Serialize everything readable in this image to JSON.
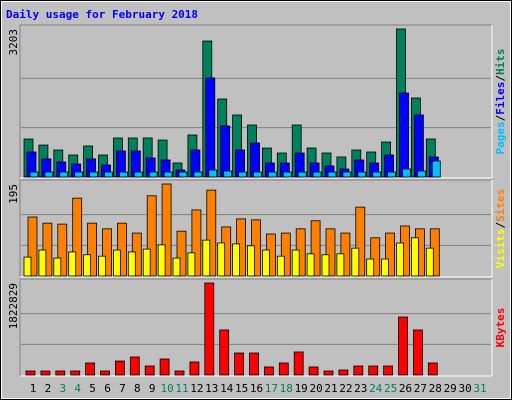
{
  "chart_data": {
    "type": "bar",
    "title": "Daily usage for February 2018",
    "categories": [
      "1",
      "2",
      "3",
      "4",
      "5",
      "6",
      "7",
      "8",
      "9",
      "10",
      "11",
      "12",
      "13",
      "14",
      "15",
      "16",
      "17",
      "18",
      "19",
      "20",
      "21",
      "22",
      "23",
      "24",
      "25",
      "26",
      "27",
      "28",
      "29",
      "30",
      "31"
    ],
    "category_colors": [
      "#000000",
      "#000000",
      "#00805C",
      "#00805C",
      "#000000",
      "#000000",
      "#000000",
      "#000000",
      "#000000",
      "#00805C",
      "#00805C",
      "#000000",
      "#000000",
      "#000000",
      "#000000",
      "#000000",
      "#00805C",
      "#00805C",
      "#000000",
      "#000000",
      "#000000",
      "#000000",
      "#000000",
      "#00805C",
      "#00805C",
      "#000000",
      "#000000",
      "#000000",
      "#000000",
      "#000000",
      "#00805C"
    ],
    "legend_separator": "/",
    "panels": [
      {
        "ylim": [
          0,
          3203
        ],
        "yticks": [
          3203
        ],
        "series": [
          {
            "name": "Hits",
            "color": "#00805C",
            "values": [
              822,
              692,
              584,
              476,
              671,
              476,
              844,
              844,
              844,
              800,
              303,
              909,
              2943,
              1688,
              1342,
              1125,
              627,
              519,
              1125,
              627,
              519,
              433,
              584,
              541,
              757,
              3203,
              1710,
              822,
              null,
              null,
              null
            ]
          },
          {
            "name": "Files",
            "color": "#0000FF",
            "values": [
              541,
              390,
              325,
              281,
              390,
              260,
              563,
              563,
              411,
              368,
              151,
              584,
              2143,
              1104,
              584,
              736,
              303,
              303,
              519,
              303,
              238,
              173,
              368,
              303,
              476,
              1818,
              1342,
              433,
              null,
              null,
              null
            ]
          },
          {
            "name": "Pages",
            "color": "#00C0FF",
            "values": [
              108,
              108,
              108,
              108,
              108,
              108,
              108,
              108,
              108,
              108,
              108,
              108,
              151,
              130,
              108,
              108,
              108,
              108,
              108,
              108,
              108,
              108,
              108,
              108,
              108,
              173,
              130,
              346,
              null,
              null,
              null
            ]
          }
        ]
      },
      {
        "ylim": [
          0,
          195
        ],
        "yticks": [
          195
        ],
        "series": [
          {
            "name": "Sites",
            "color": "#FF8000",
            "values": [
              125,
              112,
              110,
              165,
              112,
              100,
              112,
              91,
              170,
              195,
              95,
              140,
              182,
              104,
              121,
              119,
              89,
              91,
              100,
              117,
              100,
              91,
              146,
              81,
              91,
              106,
              100,
              100,
              null,
              null,
              null
            ]
          },
          {
            "name": "Visits",
            "color": "#FFFF00",
            "values": [
              40,
              55,
              38,
              51,
              45,
              42,
              55,
              51,
              57,
              66,
              38,
              49,
              76,
              70,
              68,
              64,
              55,
              42,
              55,
              47,
              45,
              47,
              59,
              36,
              36,
              70,
              81,
              59,
              null,
              null,
              null
            ]
          }
        ]
      },
      {
        "ylim": [
          0,
          1822829
        ],
        "yticks": [
          1822829
        ],
        "series": [
          {
            "name": "KBytes",
            "color": "#FF0000",
            "values": [
              79000,
              79000,
              79000,
              79000,
              238000,
              79000,
              277000,
              357000,
              178000,
              317000,
              79000,
              258000,
              1822829,
              892000,
              436000,
              436000,
              159000,
              238000,
              456000,
              159000,
              79000,
              99000,
              178000,
              178000,
              178000,
              1149000,
              892000,
              238000,
              null,
              null,
              null
            ]
          }
        ]
      }
    ]
  }
}
